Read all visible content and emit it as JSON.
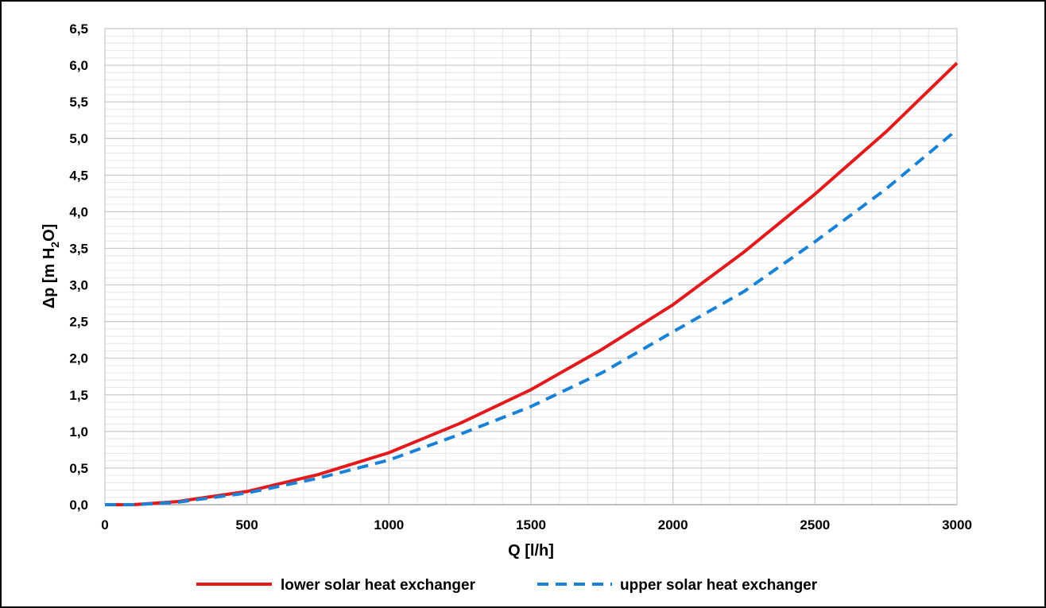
{
  "chart_data": {
    "type": "line",
    "xlabel": "Q [l/h]",
    "ylabel_parts": {
      "main": "Δp [m H",
      "sub": "2",
      "end": "O]"
    },
    "xlim": [
      0,
      3000
    ],
    "ylim": [
      0,
      6.5
    ],
    "x_ticks": [
      "0",
      "500",
      "1000",
      "1500",
      "2000",
      "2500",
      "3000"
    ],
    "y_ticks": [
      "0,0",
      "0,5",
      "1,0",
      "1,5",
      "2,0",
      "2,5",
      "3,0",
      "3,5",
      "4,0",
      "4,5",
      "5,0",
      "5,5",
      "6,0",
      "6,5"
    ],
    "grid": true,
    "legend_position": "bottom",
    "x": [
      0,
      100,
      250,
      500,
      750,
      1000,
      1250,
      1500,
      1750,
      2000,
      2250,
      2500,
      2750,
      3000
    ],
    "series": [
      {
        "name": "lower solar heat exchanger",
        "color": "#e31a1c",
        "style": "solid",
        "values": [
          0,
          0.0,
          0.04,
          0.18,
          0.41,
          0.71,
          1.11,
          1.57,
          2.12,
          2.73,
          3.45,
          4.24,
          5.09,
          6.03
        ]
      },
      {
        "name": "upper solar heat exchanger",
        "color": "#1a82d6",
        "style": "dashed",
        "values": [
          0,
          0.0,
          0.03,
          0.16,
          0.36,
          0.61,
          0.96,
          1.34,
          1.8,
          2.36,
          2.91,
          3.59,
          4.31,
          5.12
        ]
      }
    ]
  }
}
